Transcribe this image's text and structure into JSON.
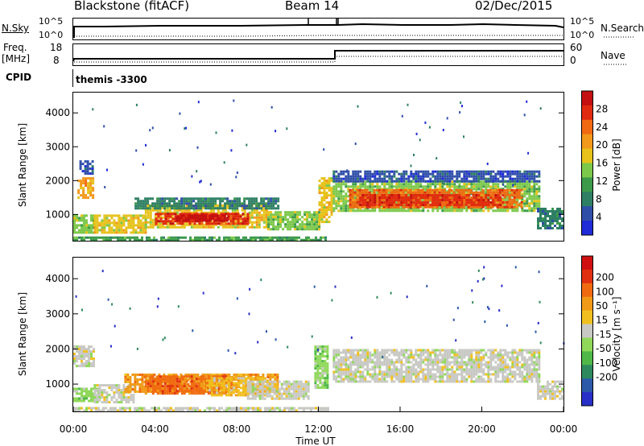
{
  "header": {
    "station": "Blackstone (fitACF)",
    "beam": "Beam 14",
    "date": "02/Dec/2015"
  },
  "top_panels": {
    "nsky_label": "N.Sky",
    "nsearch_label": "N.Search",
    "nsky_ticks": [
      "10^5",
      "10^0"
    ],
    "nsearch_ticks": [
      "10^5",
      "10^0"
    ],
    "freq_label": "Freq.",
    "freq_unit": "[MHz]",
    "freq_ticks": [
      "18",
      "8"
    ],
    "nave_label": "Nave",
    "nave_ticks": [
      "60",
      "0"
    ],
    "cpid_label": "CPID",
    "cpid_value": "themis -3300"
  },
  "chart_data": [
    {
      "type": "heatmap",
      "name": "power",
      "ylabel": "Slant Range [km]",
      "yticks": [
        "1000",
        "2000",
        "3000",
        "4000"
      ],
      "ylim": [
        200,
        4600
      ],
      "colorbar": {
        "label": "Power [dB]",
        "ticks": [
          "4",
          "8",
          "12",
          "16",
          "20",
          "24",
          "28"
        ],
        "colors": [
          "#1f2bd6",
          "#2f4ea8",
          "#2e7f64",
          "#3c9a4a",
          "#7cc84a",
          "#e6c21a",
          "#f2981a",
          "#f06a12",
          "#e02b10",
          "#c41010"
        ]
      },
      "blobs": [
        {
          "t0": 0.0,
          "t1": 1.0,
          "r0": 500,
          "r1": 1000,
          "c": 4
        },
        {
          "t0": 0.2,
          "t1": 1.0,
          "r0": 1500,
          "r1": 2100,
          "c": 6
        },
        {
          "t0": 0.3,
          "t1": 0.9,
          "r0": 2200,
          "r1": 2600,
          "c": 1
        },
        {
          "t0": 1.0,
          "t1": 3.5,
          "r0": 500,
          "r1": 1000,
          "c": 5
        },
        {
          "t0": 3.5,
          "t1": 9.5,
          "r0": 600,
          "r1": 1300,
          "c": 5
        },
        {
          "t0": 4.0,
          "t1": 8.5,
          "r0": 750,
          "r1": 1050,
          "c": 8
        },
        {
          "t0": 5.0,
          "t1": 7.5,
          "r0": 800,
          "r1": 1000,
          "c": 9
        },
        {
          "t0": 3.0,
          "t1": 10.0,
          "r0": 1200,
          "r1": 1500,
          "c": 2
        },
        {
          "t0": 9.5,
          "t1": 12.0,
          "r0": 600,
          "r1": 1100,
          "c": 4
        },
        {
          "t0": 12.0,
          "t1": 12.6,
          "r0": 800,
          "r1": 2100,
          "c": 5
        },
        {
          "t0": 12.7,
          "t1": 22.8,
          "r0": 1100,
          "r1": 2000,
          "c": 4
        },
        {
          "t0": 13.5,
          "t1": 22.0,
          "r0": 1250,
          "r1": 1750,
          "c": 7
        },
        {
          "t0": 14.0,
          "t1": 21.0,
          "r0": 1300,
          "r1": 1600,
          "c": 8
        },
        {
          "t0": 12.7,
          "t1": 22.8,
          "r0": 2000,
          "r1": 2300,
          "c": 1
        },
        {
          "t0": 22.7,
          "t1": 24.0,
          "r0": 600,
          "r1": 1200,
          "c": 2
        },
        {
          "t0": 0.0,
          "t1": 12.5,
          "r0": 250,
          "r1": 350,
          "c": 3
        }
      ]
    },
    {
      "type": "heatmap",
      "name": "velocity",
      "xlabel": "Time UT",
      "ylabel": "Slant Range [km]",
      "xticks": [
        "00:00",
        "04:00",
        "08:00",
        "12:00",
        "16:00",
        "20:00",
        "00:00"
      ],
      "xlim": [
        0,
        24
      ],
      "yticks": [
        "1000",
        "2000",
        "3000",
        "4000"
      ],
      "ylim": [
        200,
        4600
      ],
      "colorbar": {
        "label": "Velocity [m s⁻¹]",
        "ticks": [
          "200",
          "100",
          "50",
          "15",
          "-15",
          "-50",
          "-100",
          "-200"
        ],
        "colors": [
          "#2830c8",
          "#2c5aa8",
          "#2e8a5e",
          "#4fb848",
          "#8fd85a",
          "#c8c8c4",
          "#f0c020",
          "#f09a18",
          "#f06a10",
          "#e03010",
          "#d01010"
        ]
      },
      "blobs": [
        {
          "t0": 0.0,
          "t1": 1.0,
          "r0": 1500,
          "r1": 2100,
          "c": 5
        },
        {
          "t0": 0.0,
          "t1": 1.2,
          "r0": 500,
          "r1": 900,
          "c": 4
        },
        {
          "t0": 1.0,
          "t1": 3.0,
          "r0": 500,
          "r1": 1000,
          "c": 5
        },
        {
          "t0": 2.5,
          "t1": 10.0,
          "r0": 800,
          "r1": 1300,
          "c": 7
        },
        {
          "t0": 3.5,
          "t1": 7.5,
          "r0": 750,
          "r1": 1250,
          "c": 8
        },
        {
          "t0": 6.5,
          "t1": 9.5,
          "r0": 700,
          "r1": 1200,
          "c": 6
        },
        {
          "t0": 8.5,
          "t1": 11.5,
          "r0": 600,
          "r1": 1100,
          "c": 5
        },
        {
          "t0": 11.8,
          "t1": 12.5,
          "r0": 900,
          "r1": 2100,
          "c": 4
        },
        {
          "t0": 12.7,
          "t1": 22.8,
          "r0": 1100,
          "r1": 2000,
          "c": 5
        },
        {
          "t0": 22.7,
          "t1": 24.0,
          "r0": 600,
          "r1": 1100,
          "c": 5
        },
        {
          "t0": 0.0,
          "t1": 12.5,
          "r0": 250,
          "r1": 350,
          "c": 5
        }
      ]
    }
  ]
}
